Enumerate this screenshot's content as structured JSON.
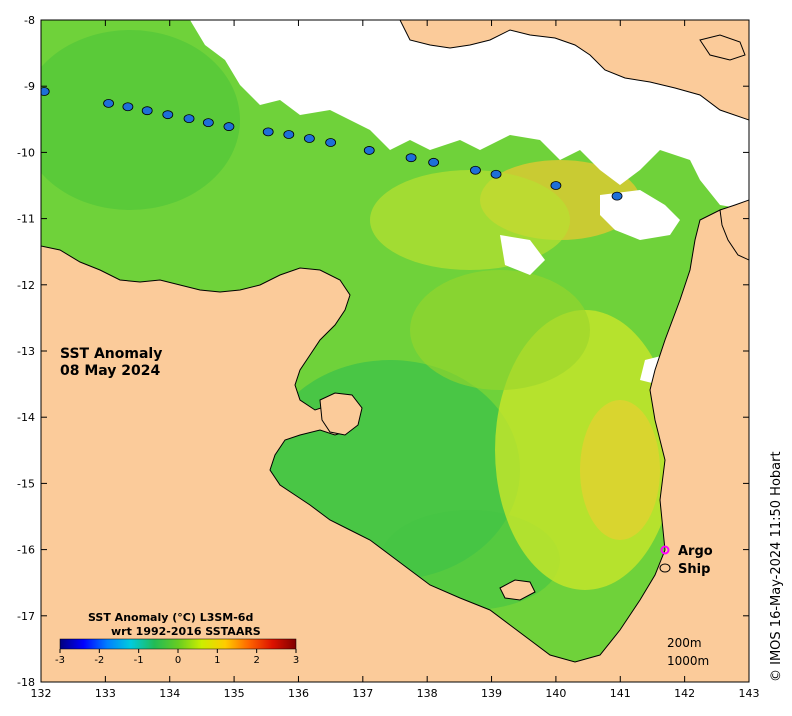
{
  "map": {
    "title_line1": "SST Anomaly",
    "title_line2": "08 May 2024",
    "credit": "© IMOS 16-May-2024 11:50 Hobart",
    "lon_range": [
      132,
      143
    ],
    "lat_range": [
      -18,
      -8
    ],
    "lon_ticks": [
      "132",
      "133",
      "134",
      "135",
      "136",
      "137",
      "138",
      "139",
      "140",
      "141",
      "142",
      "143"
    ],
    "lat_ticks": [
      "-8",
      "-9",
      "-10",
      "-11",
      "-12",
      "-13",
      "-14",
      "-15",
      "-16",
      "-17",
      "-18"
    ],
    "colors": {
      "land": "#fbcb9a",
      "no_data": "#ffffff",
      "sst_dominant": "#6fd23a",
      "coast": "#000000"
    }
  },
  "colorbar": {
    "title_line1": "SST Anomaly (°C) L3SM-6d",
    "title_line2": "wrt 1992-2016 SSTAARS",
    "range": [
      -3,
      3
    ],
    "ticks": [
      "-3",
      "-2",
      "-1",
      "0",
      "1",
      "2",
      "3"
    ],
    "colors": [
      "#00007f",
      "#0000ff",
      "#007fff",
      "#00ccdd",
      "#22bb55",
      "#66cc22",
      "#ccee00",
      "#ffcc00",
      "#ff6600",
      "#dd1100",
      "#800000"
    ]
  },
  "legend": {
    "argo_label": "Argo",
    "ship_label": "Ship",
    "argo_color": "#ff00ff",
    "ship_color": "#000000"
  },
  "depth_labels": {
    "shallow": "200m",
    "deep": "1000m"
  },
  "ship_track": {
    "points": [
      [
        132.05,
        -9.08
      ],
      [
        133.05,
        -9.26
      ],
      [
        133.35,
        -9.31
      ],
      [
        133.65,
        -9.37
      ],
      [
        133.97,
        -9.43
      ],
      [
        134.3,
        -9.49
      ],
      [
        134.6,
        -9.55
      ],
      [
        134.92,
        -9.61
      ],
      [
        135.53,
        -9.69
      ],
      [
        135.85,
        -9.73
      ],
      [
        136.17,
        -9.79
      ],
      [
        136.5,
        -9.85
      ],
      [
        137.1,
        -9.97
      ],
      [
        137.75,
        -10.08
      ],
      [
        138.1,
        -10.15
      ],
      [
        138.75,
        -10.27
      ],
      [
        139.07,
        -10.33
      ],
      [
        140.0,
        -10.5
      ],
      [
        140.95,
        -10.66
      ]
    ]
  }
}
